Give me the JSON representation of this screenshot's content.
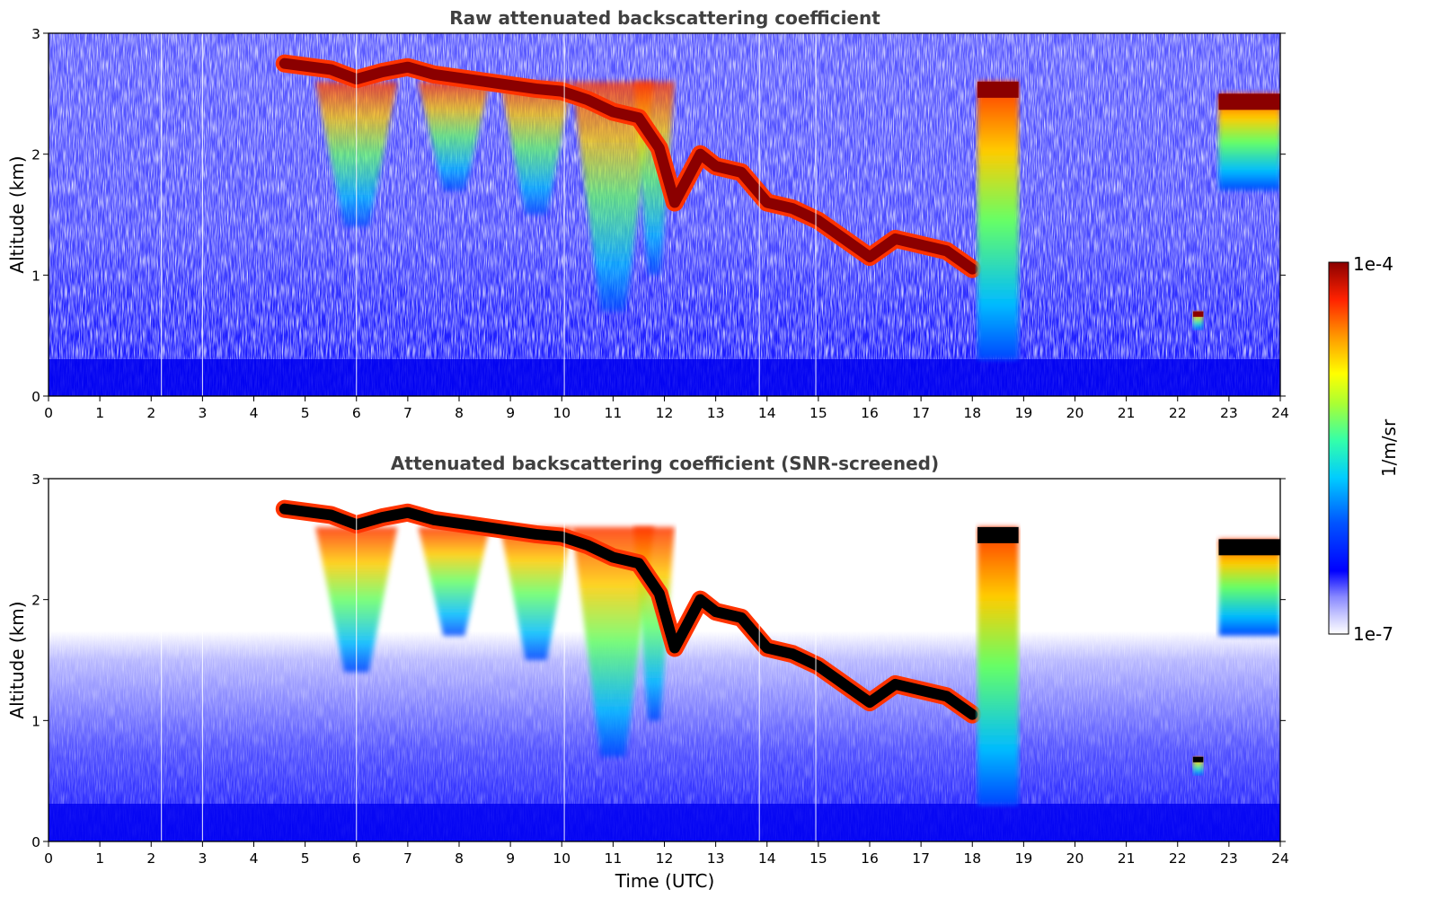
{
  "colors": {
    "background_haze": "#3333ff",
    "colormap": [
      "#ffffff",
      "#c8c8ff",
      "#8888ff",
      "#0000ff",
      "#0066ff",
      "#00ccff",
      "#33ffaa",
      "#aaff33",
      "#ffff00",
      "#ff9900",
      "#ff2200",
      "#8b0000"
    ],
    "saturated_black": "#000000"
  },
  "chart_data": [
    {
      "type": "heatmap",
      "panel": "top",
      "title": "Raw attenuated backscattering coefficient",
      "xlabel": "",
      "ylabel": "Altitude (km)",
      "xlim": [
        0,
        24
      ],
      "ylim": [
        0,
        3
      ],
      "xticks": [
        "0",
        "1",
        "2",
        "3",
        "4",
        "5",
        "6",
        "7",
        "8",
        "9",
        "10",
        "11",
        "12",
        "13",
        "14",
        "15",
        "16",
        "17",
        "18",
        "19",
        "20",
        "21",
        "22",
        "23",
        "24"
      ],
      "yticks": [
        "0",
        "1",
        "2",
        "3"
      ],
      "cloud_top": [
        [
          4.6,
          2.75
        ],
        [
          5.5,
          2.7
        ],
        [
          6,
          2.62
        ],
        [
          6.5,
          2.68
        ],
        [
          7,
          2.72
        ],
        [
          7.5,
          2.66
        ],
        [
          8,
          2.63
        ],
        [
          8.5,
          2.6
        ],
        [
          9,
          2.57
        ],
        [
          9.5,
          2.54
        ],
        [
          10,
          2.52
        ],
        [
          10.5,
          2.45
        ],
        [
          11,
          2.35
        ],
        [
          11.5,
          2.3
        ],
        [
          11.9,
          2.05
        ],
        [
          12.2,
          1.6
        ],
        [
          12.7,
          2.0
        ],
        [
          13,
          1.9
        ],
        [
          13.5,
          1.85
        ],
        [
          14,
          1.6
        ],
        [
          14.5,
          1.55
        ],
        [
          15,
          1.45
        ],
        [
          15.5,
          1.3
        ],
        [
          16,
          1.15
        ],
        [
          16.5,
          1.3
        ],
        [
          17,
          1.25
        ],
        [
          17.5,
          1.2
        ],
        [
          18,
          1.05
        ]
      ],
      "cloud_columns": [
        [
          18.1,
          18.9,
          0.3,
          2.6
        ],
        [
          22.8,
          24,
          1.7,
          2.5
        ],
        [
          22.3,
          22.5,
          0.55,
          0.7
        ]
      ],
      "colorbar": {
        "max_label": "1e-4",
        "min_label": "1e-7",
        "units": "1/m/sr"
      }
    },
    {
      "type": "heatmap",
      "panel": "bottom",
      "title": "Attenuated backscattering coefficient (SNR-screened)",
      "xlabel": "Time (UTC)",
      "ylabel": "Altitude (km)",
      "xlim": [
        0,
        24
      ],
      "ylim": [
        0,
        3
      ],
      "xticks": [
        "0",
        "1",
        "2",
        "3",
        "4",
        "5",
        "6",
        "7",
        "8",
        "9",
        "10",
        "11",
        "12",
        "13",
        "14",
        "15",
        "16",
        "17",
        "18",
        "19",
        "20",
        "21",
        "22",
        "23",
        "24"
      ],
      "yticks": [
        "0",
        "1",
        "2",
        "3"
      ]
    }
  ]
}
